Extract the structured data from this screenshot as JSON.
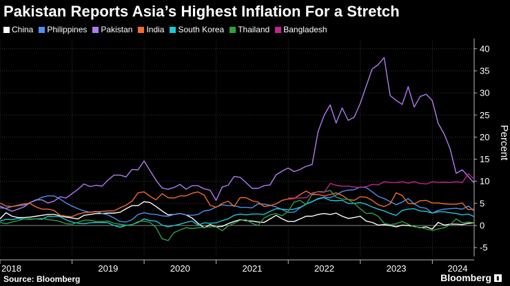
{
  "header": {
    "title": "Pakistan Reports Asia’s Highest Inflation For a Stretch"
  },
  "footer": {
    "source": "Source: Bloomberg",
    "brand": "Bloomberg"
  },
  "chart_data": {
    "type": "line",
    "title": "Pakistan Reports Asia’s Highest Inflation For a Stretch",
    "ylabel": "Percent",
    "xlabel": "",
    "ylim": [
      -7,
      42
    ],
    "xlim": [
      2018.0,
      2024.58
    ],
    "yticks": [
      -5,
      0,
      5,
      10,
      15,
      20,
      25,
      30,
      35,
      40
    ],
    "ytick_labels": [
      "-5",
      "0",
      "5",
      "10",
      "15",
      "20",
      "25",
      "30",
      "35",
      "40"
    ],
    "xticks": [
      2018,
      2019,
      2020,
      2021,
      2022,
      2023,
      2024
    ],
    "xtick_labels": [
      "2018",
      "2019",
      "2020",
      "2021",
      "2022",
      "2023",
      "2024"
    ],
    "grid": true,
    "legend_position": "top-left",
    "series": [
      {
        "name": "China",
        "color": "#ffffff",
        "start": 2018.0,
        "step": 0.0833,
        "values": [
          1.5,
          2.9,
          2.1,
          1.8,
          1.8,
          1.9,
          2.1,
          2.3,
          2.5,
          2.5,
          2.2,
          1.9,
          1.7,
          1.5,
          2.3,
          2.5,
          2.7,
          2.7,
          2.8,
          2.8,
          3.0,
          3.8,
          4.5,
          4.5,
          5.4,
          5.2,
          4.3,
          3.3,
          2.4,
          2.5,
          2.7,
          2.4,
          1.7,
          0.5,
          -0.5,
          0.2,
          -0.3,
          -0.2,
          0.4,
          0.9,
          1.3,
          1.1,
          1.0,
          0.8,
          0.7,
          1.5,
          2.3,
          1.5,
          0.9,
          0.9,
          1.5,
          2.1,
          2.1,
          2.5,
          2.7,
          2.5,
          2.8,
          2.1,
          1.6,
          1.8,
          2.1,
          1.0,
          0.7,
          0.1,
          0.2,
          0.0,
          -0.3,
          0.1,
          0.0,
          -0.2,
          -0.5,
          -0.3,
          -0.8,
          0.7,
          0.1,
          0.3,
          0.3,
          0.2,
          0.5,
          0.6
        ]
      },
      {
        "name": "Philippines",
        "color": "#4f8ff0",
        "start": 2018.0,
        "step": 0.0833,
        "values": [
          4.0,
          3.9,
          4.3,
          4.5,
          4.6,
          5.2,
          5.7,
          6.4,
          6.7,
          6.7,
          6.0,
          5.1,
          4.4,
          3.8,
          3.3,
          3.0,
          3.2,
          2.7,
          2.4,
          1.7,
          0.9,
          0.8,
          1.3,
          2.5,
          2.9,
          2.6,
          2.5,
          2.2,
          2.1,
          2.5,
          2.7,
          2.4,
          2.3,
          2.5,
          3.3,
          3.5,
          4.2,
          4.7,
          4.5,
          4.5,
          4.1,
          4.1,
          4.0,
          4.9,
          4.8,
          4.6,
          4.2,
          3.6,
          3.0,
          3.0,
          4.0,
          4.9,
          5.4,
          6.1,
          6.4,
          6.3,
          6.9,
          7.7,
          8.0,
          8.1,
          8.7,
          8.6,
          7.6,
          6.6,
          6.1,
          5.4,
          4.7,
          5.3,
          6.1,
          4.9,
          4.1,
          3.9,
          2.8,
          3.4,
          3.7,
          3.8,
          3.9,
          3.7,
          4.4,
          3.3
        ]
      },
      {
        "name": "Pakistan",
        "color": "#b07cf0",
        "start": 2018.0,
        "step": 0.0833,
        "values": [
          4.4,
          3.8,
          3.2,
          3.7,
          4.2,
          5.2,
          5.8,
          5.8,
          5.1,
          5.5,
          6.5,
          6.2,
          7.2,
          8.2,
          9.4,
          8.8,
          9.1,
          8.9,
          10.3,
          11.4,
          11.4,
          11.0,
          12.7,
          12.6,
          14.6,
          12.4,
          10.2,
          8.5,
          8.2,
          8.6,
          9.3,
          8.2,
          9.0,
          9.0,
          8.3,
          8.0,
          5.7,
          8.7,
          9.1,
          11.1,
          10.9,
          9.7,
          8.4,
          8.4,
          9.0,
          9.2,
          11.5,
          12.3,
          13.0,
          12.2,
          12.7,
          13.4,
          13.8,
          21.3,
          24.9,
          27.3,
          23.2,
          26.6,
          23.8,
          24.5,
          27.6,
          31.5,
          35.4,
          36.4,
          38.0,
          29.4,
          28.3,
          27.4,
          31.4,
          26.8,
          29.2,
          29.7,
          28.3,
          23.1,
          20.7,
          17.3,
          11.8,
          12.6,
          11.1,
          9.6
        ]
      },
      {
        "name": "India",
        "color": "#f36b2f",
        "start": 2018.0,
        "step": 0.0833,
        "values": [
          5.1,
          4.4,
          4.3,
          4.6,
          4.9,
          5.0,
          4.2,
          3.7,
          3.7,
          3.4,
          2.3,
          2.1,
          2.0,
          2.6,
          2.9,
          3.0,
          3.1,
          3.2,
          3.3,
          3.3,
          4.0,
          4.6,
          5.5,
          7.4,
          7.6,
          6.6,
          5.8,
          7.2,
          6.3,
          6.2,
          6.7,
          6.7,
          7.3,
          7.6,
          6.9,
          4.6,
          4.1,
          5.0,
          5.5,
          4.3,
          6.3,
          6.3,
          5.6,
          5.3,
          4.3,
          4.5,
          4.9,
          5.7,
          6.0,
          6.1,
          7.0,
          7.8,
          7.0,
          7.0,
          6.7,
          7.0,
          7.4,
          6.8,
          5.9,
          5.7,
          6.5,
          6.4,
          5.7,
          4.7,
          4.3,
          4.9,
          7.4,
          6.8,
          5.0,
          4.9,
          5.6,
          5.7,
          5.1,
          5.1,
          4.9,
          4.8,
          4.8,
          5.1,
          3.6,
          3.7
        ]
      },
      {
        "name": "South Korea",
        "color": "#1ec8d8",
        "start": 2018.0,
        "step": 0.0833,
        "values": [
          1.0,
          1.4,
          1.3,
          1.6,
          1.5,
          1.5,
          1.5,
          1.4,
          2.1,
          2.0,
          2.0,
          1.3,
          0.8,
          0.5,
          0.4,
          0.6,
          0.7,
          0.7,
          0.6,
          0.0,
          -0.4,
          0.0,
          0.2,
          0.7,
          1.5,
          1.1,
          1.0,
          0.1,
          -0.3,
          0.0,
          0.3,
          0.7,
          1.0,
          0.1,
          0.6,
          0.5,
          0.6,
          1.1,
          1.5,
          2.3,
          2.6,
          2.4,
          2.6,
          2.6,
          2.5,
          3.2,
          3.8,
          3.7,
          3.6,
          3.7,
          4.1,
          4.8,
          5.4,
          6.0,
          6.3,
          5.7,
          5.6,
          5.7,
          5.0,
          5.0,
          5.2,
          4.8,
          4.2,
          3.7,
          3.3,
          2.7,
          2.3,
          3.4,
          3.7,
          3.8,
          3.3,
          3.2,
          2.8,
          3.1,
          3.1,
          2.9,
          2.7,
          2.4,
          2.6,
          2.0
        ]
      },
      {
        "name": "Thailand",
        "color": "#2ea043",
        "start": 2018.0,
        "step": 0.0833,
        "values": [
          0.7,
          0.4,
          0.8,
          1.1,
          1.5,
          1.4,
          1.5,
          1.6,
          1.3,
          1.2,
          0.9,
          0.4,
          0.3,
          0.7,
          1.2,
          1.2,
          0.9,
          0.9,
          1.0,
          0.5,
          0.3,
          0.1,
          0.2,
          0.9,
          1.0,
          0.7,
          -0.5,
          -3.0,
          -3.4,
          -1.6,
          -1.0,
          -0.5,
          -0.7,
          -0.5,
          -0.4,
          -0.3,
          -0.3,
          -1.2,
          -0.1,
          0.5,
          1.2,
          1.3,
          0.5,
          -0.0,
          1.7,
          2.4,
          2.7,
          2.2,
          3.2,
          5.3,
          5.7,
          4.7,
          7.1,
          7.7,
          7.6,
          7.9,
          6.4,
          6.0,
          5.9,
          5.0,
          3.8,
          2.7,
          2.8,
          2.1,
          0.5,
          0.2,
          0.4,
          0.9,
          0.3,
          -0.3,
          -0.4,
          -0.8,
          -1.1,
          -0.8,
          -0.5,
          0.2,
          1.5,
          0.6,
          0.8,
          0.6
        ]
      },
      {
        "name": "Bangladesh",
        "color": "#c2258c",
        "start": 2022.0,
        "step": 0.0833,
        "values": [
          6.2,
          6.2,
          6.2,
          6.3,
          7.4,
          7.6,
          7.5,
          9.5,
          9.1,
          8.9,
          8.9,
          8.7,
          8.6,
          8.8,
          9.3,
          9.2,
          9.9,
          9.7,
          9.7,
          9.9,
          9.6,
          9.9,
          9.5,
          9.4,
          9.9,
          9.7,
          9.8,
          9.7,
          9.9,
          9.7,
          11.7,
          10.5
        ]
      }
    ]
  }
}
